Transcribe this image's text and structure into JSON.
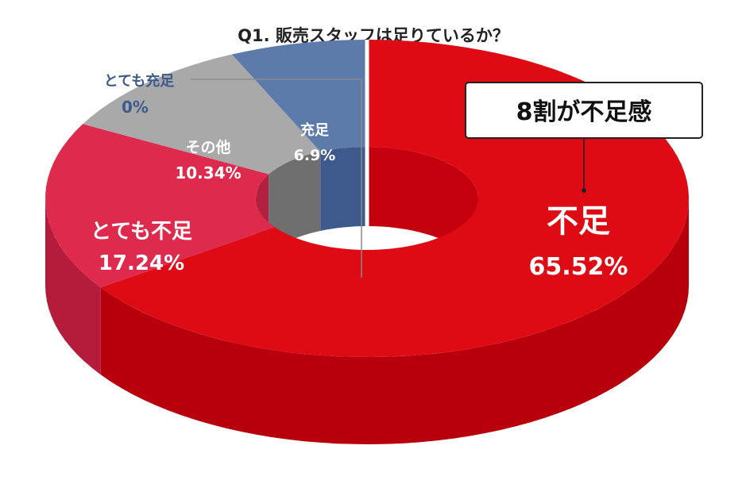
{
  "chart_data": {
    "type": "pie",
    "style": "3d-donut",
    "title": "Q1. 販売スタッフは足りているか？",
    "slices": [
      {
        "label": "不足",
        "pct_text": "65.52%",
        "value": 65.52,
        "color": "#df0b14",
        "side_color": "#b8000c",
        "hole_color": "#c4000f"
      },
      {
        "label": "とても不足",
        "pct_text": "17.24%",
        "value": 17.24,
        "color": "#dd2a4d",
        "side_color": "#b51c3c",
        "hole_color": "#b2203f"
      },
      {
        "label": "その他",
        "pct_text": "10.34%",
        "value": 10.34,
        "color": "#a9a9a9",
        "side_color": "#7a7a7a",
        "hole_color": "#6f6f6f"
      },
      {
        "label": "充足",
        "pct_text": "6.9%",
        "value": 6.9,
        "color": "#5c7aaa",
        "side_color": "#3e5a8c",
        "hole_color": "#3e5a8c"
      },
      {
        "label": "とても充足",
        "pct_text": "0%",
        "value": 0,
        "color": "#3e5a8c"
      }
    ],
    "callout": {
      "text": "8割が不足感"
    }
  }
}
